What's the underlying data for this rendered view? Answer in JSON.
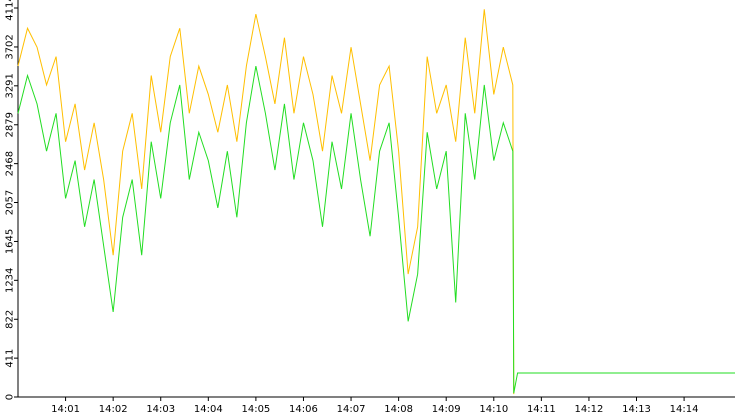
{
  "chart_data": {
    "type": "line",
    "x": [
      0,
      0.2,
      0.4,
      0.6,
      0.8,
      1.0,
      1.2,
      1.4,
      1.6,
      1.8,
      2.0,
      2.2,
      2.4,
      2.6,
      2.8,
      3.0,
      3.2,
      3.4,
      3.6,
      3.8,
      4.0,
      4.2,
      4.4,
      4.6,
      4.8,
      5.0,
      5.2,
      5.4,
      5.6,
      5.8,
      6.0,
      6.2,
      6.4,
      6.6,
      6.8,
      7.0,
      7.2,
      7.4,
      7.6,
      7.8,
      8.0,
      8.2,
      8.4,
      8.6,
      8.8,
      9.0,
      9.2,
      9.4,
      9.6,
      9.8,
      10.0,
      10.2,
      10.4,
      10.42,
      10.5,
      15.07
    ],
    "series": [
      {
        "color": "#ffbf00",
        "values": [
          3500,
          3900,
          3700,
          3300,
          3600,
          2700,
          3100,
          2400,
          2900,
          2300,
          1500,
          2600,
          3000,
          2200,
          3400,
          2800,
          3600,
          3900,
          3000,
          3500,
          3200,
          2800,
          3300,
          2700,
          3500,
          4050,
          3600,
          3100,
          3800,
          3000,
          3600,
          3200,
          2600,
          3400,
          3000,
          3700,
          3100,
          2500,
          3300,
          3500,
          2600,
          1300,
          1800,
          3600,
          3000,
          3300,
          2700,
          3800,
          3000,
          4100,
          3200,
          3700,
          3300,
          30,
          null,
          null
        ]
      },
      {
        "color": "#22dd22",
        "values": [
          3000,
          3400,
          3100,
          2600,
          3000,
          2100,
          2500,
          1800,
          2300,
          1600,
          900,
          1900,
          2300,
          1500,
          2700,
          2100,
          2900,
          3300,
          2300,
          2800,
          2500,
          2000,
          2600,
          1900,
          2900,
          3500,
          3000,
          2400,
          3100,
          2300,
          2900,
          2500,
          1800,
          2700,
          2200,
          3000,
          2300,
          1700,
          2600,
          2900,
          1900,
          800,
          1300,
          2800,
          2200,
          2600,
          1000,
          3000,
          2300,
          3300,
          2500,
          2900,
          2600,
          40,
          254,
          254
        ]
      }
    ],
    "xlim": [
      0,
      15.07
    ],
    "xticks": [
      {
        "value": 1,
        "label": "14:01"
      },
      {
        "value": 2,
        "label": "14:02"
      },
      {
        "value": 3,
        "label": "14:03"
      },
      {
        "value": 4,
        "label": "14:04"
      },
      {
        "value": 5,
        "label": "14:05"
      },
      {
        "value": 6,
        "label": "14:06"
      },
      {
        "value": 7,
        "label": "14:07"
      },
      {
        "value": 8,
        "label": "14:08"
      },
      {
        "value": 9,
        "label": "14:09"
      },
      {
        "value": 10,
        "label": "14:10"
      },
      {
        "value": 11,
        "label": "14:11"
      },
      {
        "value": 12,
        "label": "14:12"
      },
      {
        "value": 13,
        "label": "14:13"
      },
      {
        "value": 14,
        "label": "14:14"
      }
    ],
    "ylim": [
      0,
      4114
    ],
    "yticks": [
      0,
      411,
      822,
      1234,
      1645,
      2057,
      2468,
      2879,
      3291,
      3702,
      4114
    ]
  }
}
